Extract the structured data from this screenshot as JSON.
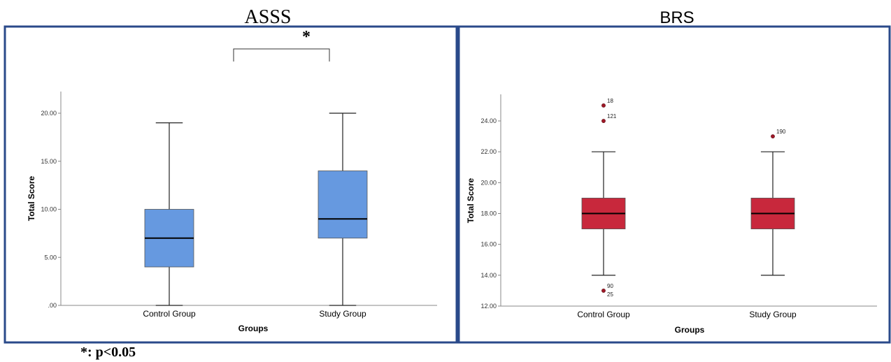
{
  "footnote": "*: p<0.05",
  "chart_data": [
    {
      "type": "box",
      "title": "ASSS",
      "xlabel": "Groups",
      "ylabel": "Total Score",
      "categories": [
        "Control Group",
        "Study Group"
      ],
      "ylim": [
        0,
        22
      ],
      "yticks": [
        ".00",
        "5.00",
        "10.00",
        "15.00",
        "20.00"
      ],
      "box_color": "#6699e0",
      "boxes": [
        {
          "category": "Control Group",
          "min": 0,
          "q1": 4,
          "median": 7,
          "q3": 10,
          "max": 19,
          "outliers": []
        },
        {
          "category": "Study Group",
          "min": 0,
          "q1": 7,
          "median": 9,
          "q3": 14,
          "max": 20,
          "outliers": []
        }
      ],
      "significance": {
        "between": [
          "Control Group",
          "Study Group"
        ],
        "label": "*"
      }
    },
    {
      "type": "box",
      "title": "BRS",
      "xlabel": "Groups",
      "ylabel": "Total Score",
      "categories": [
        "Control Group",
        "Study Group"
      ],
      "ylim": [
        12,
        25.5
      ],
      "yticks": [
        "12.00",
        "14.00",
        "16.00",
        "18.00",
        "20.00",
        "22.00",
        "24.00"
      ],
      "box_color": "#c8283c",
      "boxes": [
        {
          "category": "Control Group",
          "min": 14,
          "q1": 17,
          "median": 18,
          "q3": 19,
          "max": 22,
          "outliers": [
            {
              "value": 25,
              "label": "18"
            },
            {
              "value": 24,
              "label": "121"
            },
            {
              "value": 13,
              "label": "90"
            },
            {
              "value": 13,
              "label": "25"
            }
          ]
        },
        {
          "category": "Study Group",
          "min": 14,
          "q1": 17,
          "median": 18,
          "q3": 19,
          "max": 22,
          "outliers": [
            {
              "value": 23,
              "label": "190"
            }
          ]
        }
      ]
    }
  ]
}
